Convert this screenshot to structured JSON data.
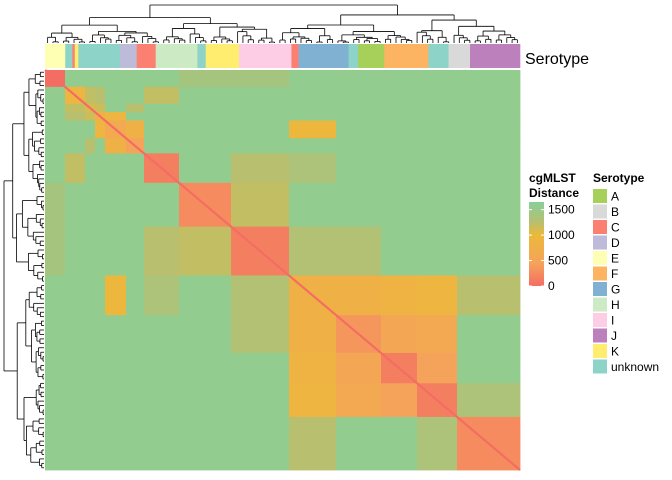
{
  "chart_data": {
    "type": "heatmap",
    "title": "",
    "annotation_label": "Serotype",
    "color_legend": {
      "title_lines": [
        "cgMLST",
        "Distance"
      ],
      "ticks": [
        0,
        500,
        1000,
        1500
      ],
      "range": [
        0,
        1650
      ],
      "stops": [
        {
          "value": 0,
          "color": "#f46d63"
        },
        {
          "value": 450,
          "color": "#f5a35b"
        },
        {
          "value": 1000,
          "color": "#ecb93a"
        },
        {
          "value": 1250,
          "color": "#b8bf6e"
        },
        {
          "value": 1650,
          "color": "#86d09a"
        }
      ]
    },
    "serotype_legend": {
      "title": "Serotype",
      "items": [
        {
          "label": "A",
          "color": "#a6d05a"
        },
        {
          "label": "B",
          "color": "#d9d9d9"
        },
        {
          "label": "C",
          "color": "#fb8072"
        },
        {
          "label": "D",
          "color": "#bebada"
        },
        {
          "label": "E",
          "color": "#ffffb3"
        },
        {
          "label": "F",
          "color": "#fdb462"
        },
        {
          "label": "G",
          "color": "#80b1d3"
        },
        {
          "label": "H",
          "color": "#ccebc5"
        },
        {
          "label": "I",
          "color": "#fccde5"
        },
        {
          "label": "J",
          "color": "#bc80bd"
        },
        {
          "label": "K",
          "color": "#ffed6f"
        },
        {
          "label": "unknown",
          "color": "#8dd3c7"
        }
      ]
    },
    "columns": [
      {
        "serotype": "E",
        "width": 17
      },
      {
        "serotype": "unknown",
        "width": 6
      },
      {
        "serotype": "C",
        "width": 2
      },
      {
        "serotype": "K",
        "width": 3
      },
      {
        "serotype": "unknown",
        "width": 35
      },
      {
        "serotype": "D",
        "width": 14
      },
      {
        "serotype": "C",
        "width": 16
      },
      {
        "serotype": "H",
        "width": 35
      },
      {
        "serotype": "unknown",
        "width": 7
      },
      {
        "serotype": "K",
        "width": 28
      },
      {
        "serotype": "I",
        "width": 44
      },
      {
        "serotype": "C",
        "width": 6
      },
      {
        "serotype": "G",
        "width": 42
      },
      {
        "serotype": "unknown",
        "width": 8
      },
      {
        "serotype": "A",
        "width": 22
      },
      {
        "serotype": "F",
        "width": 37
      },
      {
        "serotype": "unknown",
        "width": 17
      },
      {
        "serotype": "B",
        "width": 18
      },
      {
        "serotype": "J",
        "width": 42
      }
    ],
    "blocks": [
      {
        "size": 20,
        "within": 0
      },
      {
        "size": 20,
        "within": 900
      },
      {
        "size": 10,
        "within": 1100
      },
      {
        "size": 10,
        "within": 800
      },
      {
        "size": 21,
        "within": 600
      },
      {
        "size": 18,
        "within": 450
      },
      {
        "size": 35,
        "within": 150
      },
      {
        "size": 52,
        "within": 250
      },
      {
        "size": 58,
        "within": 150
      },
      {
        "size": 47,
        "within": 800
      },
      {
        "size": 45,
        "within": 350
      },
      {
        "size": 36,
        "within": 150
      },
      {
        "size": 40,
        "within": 150
      },
      {
        "size": 63,
        "within": 250
      }
    ],
    "between": [
      [
        0,
        7,
        1400
      ],
      [
        0,
        8,
        1400
      ],
      [
        1,
        2,
        1200
      ],
      [
        1,
        3,
        1250
      ],
      [
        2,
        3,
        1150
      ],
      [
        3,
        4,
        900
      ],
      [
        4,
        5,
        800
      ],
      [
        2,
        5,
        1250
      ],
      [
        1,
        6,
        1200
      ],
      [
        4,
        9,
        950
      ],
      [
        6,
        8,
        1250
      ],
      [
        6,
        9,
        1350
      ],
      [
        7,
        8,
        1200
      ],
      [
        8,
        9,
        1300
      ],
      [
        8,
        10,
        1300
      ],
      [
        9,
        10,
        800
      ],
      [
        9,
        11,
        850
      ],
      [
        9,
        12,
        900
      ],
      [
        10,
        11,
        550
      ],
      [
        10,
        12,
        600
      ],
      [
        11,
        12,
        450
      ],
      [
        9,
        13,
        1250
      ],
      [
        12,
        13,
        1350
      ]
    ],
    "default_between": 1550
  }
}
